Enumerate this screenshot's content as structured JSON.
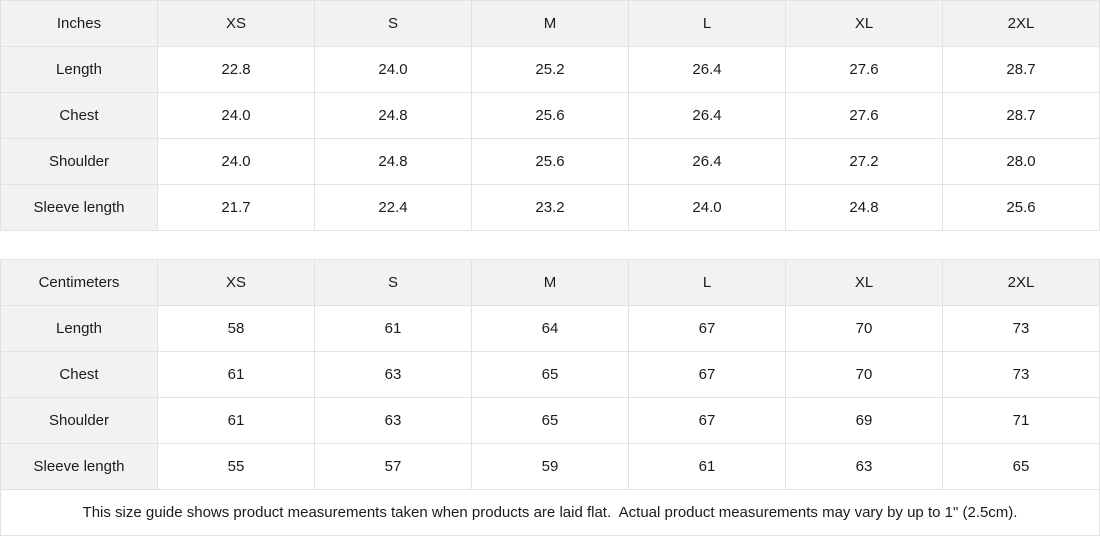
{
  "tables": [
    {
      "unit_label": "Inches",
      "sizes": [
        "XS",
        "S",
        "M",
        "L",
        "XL",
        "2XL"
      ],
      "rows": [
        {
          "label": "Length",
          "values": [
            "22.8",
            "24.0",
            "25.2",
            "26.4",
            "27.6",
            "28.7"
          ]
        },
        {
          "label": "Chest",
          "values": [
            "24.0",
            "24.8",
            "25.6",
            "26.4",
            "27.6",
            "28.7"
          ]
        },
        {
          "label": "Shoulder",
          "values": [
            "24.0",
            "24.8",
            "25.6",
            "26.4",
            "27.2",
            "28.0"
          ]
        },
        {
          "label": "Sleeve length",
          "values": [
            "21.7",
            "22.4",
            "23.2",
            "24.0",
            "24.8",
            "25.6"
          ]
        }
      ]
    },
    {
      "unit_label": "Centimeters",
      "sizes": [
        "XS",
        "S",
        "M",
        "L",
        "XL",
        "2XL"
      ],
      "rows": [
        {
          "label": "Length",
          "values": [
            "58",
            "61",
            "64",
            "67",
            "70",
            "73"
          ]
        },
        {
          "label": "Chest",
          "values": [
            "61",
            "63",
            "65",
            "67",
            "70",
            "73"
          ]
        },
        {
          "label": "Shoulder",
          "values": [
            "61",
            "63",
            "65",
            "67",
            "69",
            "71"
          ]
        },
        {
          "label": "Sleeve length",
          "values": [
            "55",
            "57",
            "59",
            "61",
            "63",
            "65"
          ]
        }
      ]
    }
  ],
  "footnote": "This size guide shows product measurements taken when products are laid flat.  Actual product measurements may vary by up to 1\" (2.5cm).",
  "colors": {
    "shaded_cell_bg": "#f2f2f2",
    "border": "#e2e2e2",
    "text": "#1b1b1b"
  }
}
